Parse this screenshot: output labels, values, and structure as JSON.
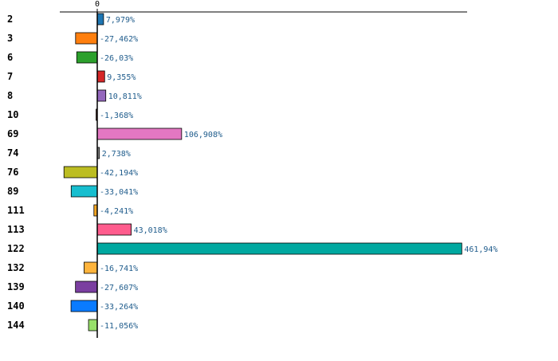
{
  "chart_data": {
    "type": "bar",
    "orientation": "horizontal",
    "categories": [
      "2",
      "3",
      "6",
      "7",
      "8",
      "10",
      "69",
      "74",
      "76",
      "89",
      "111",
      "113",
      "122",
      "132",
      "139",
      "140",
      "144"
    ],
    "values": [
      7.979,
      -27.462,
      -26.03,
      9.355,
      10.811,
      -1.368,
      106.908,
      2.738,
      -42.194,
      -33.041,
      -4.241,
      43.018,
      461.94,
      -16.741,
      -27.607,
      -33.264,
      -11.056
    ],
    "value_labels": [
      "7,979%",
      "-27,462%",
      "-26,03%",
      "9,355%",
      "10,811%",
      "-1,368%",
      "106,908%",
      "2,738%",
      "-42,194%",
      "-33,041%",
      "-4,241%",
      "43,018%",
      "461,94%",
      "-16,741%",
      "-27,607%",
      "-33,264%",
      "-11,056%"
    ],
    "colors": [
      "#1f77b4",
      "#ff7f0e",
      "#2ca02c",
      "#d62728",
      "#9467bd",
      "#8c564b",
      "#e377c2",
      "#7f7f7f",
      "#bcbd22",
      "#17becf",
      "#f5a623",
      "#ff5c8d",
      "#00a8a0",
      "#ffb43c",
      "#7b3fa0",
      "#0a7bff",
      "#98e06a"
    ],
    "x_ticks": [
      "0"
    ],
    "xlim": [
      -47,
      468
    ],
    "title": "",
    "xlabel": "",
    "ylabel": "",
    "grid": false,
    "legend": "none"
  }
}
